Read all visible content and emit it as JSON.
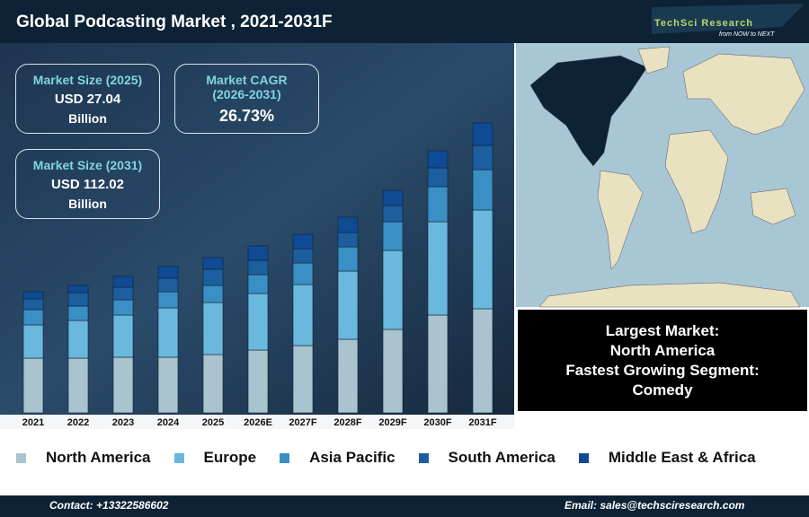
{
  "header": {
    "title": "Global Podcasting Market , 2021-2031F",
    "logo": {
      "name": "TechSci Research",
      "tagline": "from NOW to NEXT"
    }
  },
  "stats": [
    {
      "label": "Market Size (2025)",
      "value": "USD 27.04",
      "unit": "Billion"
    },
    {
      "label": "Market CAGR (2026-2031)",
      "value": "26.73%"
    },
    {
      "label": "Market Size (2031)",
      "value": "USD 112.02",
      "unit": "Billion"
    }
  ],
  "highlights": [
    "Largest Market:",
    "North America",
    "Fastest Growing Segment:",
    "Comedy"
  ],
  "footer": {
    "contact": "Contact: +13322586602",
    "email": "Email: sales@techsciresearch.com"
  },
  "chart_data": {
    "type": "stacked-bar",
    "categories": [
      "2021",
      "2022",
      "2023",
      "2024",
      "2025",
      "2026E",
      "2027F",
      "2028F",
      "2029F",
      "2030F",
      "2031F"
    ],
    "series": [
      {
        "name": "North America",
        "color": "#a9c3cf",
        "values": [
          61,
          61,
          62,
          62,
          65,
          70,
          75,
          82,
          93,
          109,
          116
        ]
      },
      {
        "name": "Europe",
        "color": "#6ab8dd",
        "values": [
          37,
          42,
          47,
          55,
          58,
          63,
          68,
          76,
          88,
          104,
          110
        ]
      },
      {
        "name": "Asia Pacific",
        "color": "#3a8fc4",
        "values": [
          17,
          16,
          17,
          18,
          19,
          21,
          24,
          27,
          32,
          39,
          45
        ]
      },
      {
        "name": "South America",
        "color": "#1c5e9e",
        "values": [
          12,
          15,
          14,
          15,
          18,
          16,
          16,
          16,
          18,
          21,
          27
        ]
      },
      {
        "name": "Middle East & Africa",
        "color": "#0f4a94",
        "values": [
          8,
          8,
          12,
          13,
          13,
          16,
          16,
          17,
          17,
          19,
          25
        ]
      }
    ],
    "ylim": [
      0,
      330
    ]
  }
}
